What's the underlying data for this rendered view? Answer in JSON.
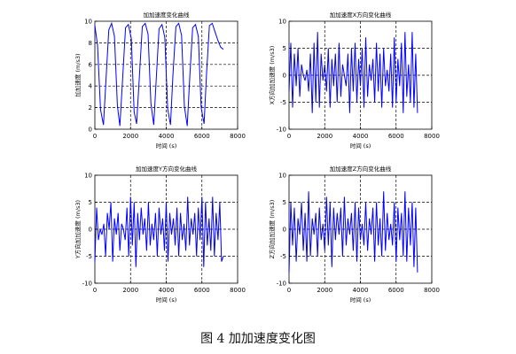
{
  "caption": "图 4 加加速度变化图",
  "chart_data": [
    {
      "type": "line",
      "title": "加加速度变化曲线",
      "xlabel": "时间 (s)",
      "ylabel": "加加速度 (m/s3)",
      "xlim": [
        0,
        8000
      ],
      "ylim": [
        0,
        10
      ],
      "xticks": [
        0,
        2000,
        4000,
        6000,
        8000
      ],
      "yticks": [
        0,
        2,
        4,
        6,
        8,
        10
      ],
      "grid": "dashed",
      "series": [
        {
          "color": "#0000ff",
          "x": [
            0,
            150,
            320,
            480,
            620,
            780,
            940,
            1100,
            1260,
            1400,
            1560,
            1720,
            1880,
            2040,
            2200,
            2340,
            2500,
            2660,
            2820,
            2980,
            3140,
            3300,
            3440,
            3600,
            3760,
            3920,
            4080,
            4240,
            4380,
            4540,
            4700,
            4860,
            5020,
            5180,
            5320,
            5480,
            5640,
            5800,
            5960,
            6120,
            6260,
            6420,
            6580,
            6740,
            6900,
            7050,
            7200
          ],
          "y": [
            9.6,
            7.8,
            1.8,
            0.4,
            4.5,
            9.2,
            9.8,
            8.6,
            2.2,
            0.3,
            4.8,
            9.4,
            9.7,
            8.4,
            1.6,
            0.5,
            5.0,
            9.5,
            9.8,
            8.8,
            2.4,
            0.4,
            4.6,
            9.3,
            9.7,
            8.5,
            1.9,
            0.4,
            5.1,
            9.5,
            9.8,
            8.7,
            2.1,
            0.3,
            4.9,
            9.4,
            9.7,
            8.6,
            2.0,
            0.5,
            5.2,
            9.6,
            9.8,
            9.0,
            8.2,
            7.6,
            7.4
          ]
        }
      ]
    },
    {
      "type": "line",
      "title": "加加速度X方向变化曲线",
      "xlabel": "时间 (s)",
      "ylabel": "X方向加加速度 (m/s3)",
      "xlim": [
        0,
        8000
      ],
      "ylim": [
        -10,
        10
      ],
      "xticks": [
        0,
        2000,
        4000,
        6000,
        8000
      ],
      "yticks": [
        -10,
        -5,
        0,
        5,
        10
      ],
      "grid": "dashed",
      "series": [
        {
          "color": "#0000ff",
          "x": [
            0,
            100,
            200,
            300,
            400,
            500,
            600,
            700,
            800,
            900,
            1000,
            1100,
            1200,
            1300,
            1400,
            1500,
            1600,
            1700,
            1800,
            1900,
            2000,
            2100,
            2200,
            2300,
            2400,
            2500,
            2600,
            2700,
            2800,
            2900,
            3000,
            3100,
            3200,
            3300,
            3400,
            3500,
            3600,
            3700,
            3800,
            3900,
            4000,
            4100,
            4200,
            4300,
            4400,
            4500,
            4600,
            4700,
            4800,
            4900,
            5000,
            5100,
            5200,
            5300,
            5400,
            5500,
            5600,
            5700,
            5800,
            5900,
            6000,
            6100,
            6200,
            6300,
            6400,
            6500,
            6600,
            6700,
            6800,
            6900,
            7000,
            7100,
            7200
          ],
          "y": [
            -3,
            6,
            -6,
            4,
            -2,
            5,
            -4,
            2,
            0,
            -1,
            1,
            -3,
            4,
            -7,
            6,
            -5,
            8,
            -6,
            4,
            -1,
            2,
            -3,
            5,
            -6,
            3,
            -2,
            4,
            -5,
            6,
            -4,
            2,
            0,
            -2,
            4,
            -7,
            5,
            -3,
            6,
            -5,
            3,
            -2,
            5,
            -6,
            7,
            -4,
            2,
            -1,
            3,
            -5,
            6,
            -3,
            4,
            -6,
            5,
            -2,
            1,
            -3,
            4,
            -6,
            7,
            -5,
            3,
            -2,
            6,
            -7,
            8,
            -4,
            2,
            -5,
            8,
            -6,
            4,
            -7
          ]
        }
      ]
    },
    {
      "type": "line",
      "title": "加加速度Y方向变化曲线",
      "xlabel": "时间 (s)",
      "ylabel": "Y方向加加速度 (m/s3)",
      "xlim": [
        0,
        8000
      ],
      "ylim": [
        -10,
        10
      ],
      "xticks": [
        0,
        2000,
        4000,
        6000,
        8000
      ],
      "yticks": [
        -10,
        -5,
        0,
        5,
        10
      ],
      "grid": "dashed",
      "series": [
        {
          "color": "#0000ff",
          "x": [
            0,
            100,
            200,
            300,
            400,
            500,
            600,
            700,
            800,
            900,
            1000,
            1100,
            1200,
            1300,
            1400,
            1500,
            1600,
            1700,
            1800,
            1900,
            2000,
            2100,
            2200,
            2300,
            2400,
            2500,
            2600,
            2700,
            2800,
            2900,
            3000,
            3100,
            3200,
            3300,
            3400,
            3500,
            3600,
            3700,
            3800,
            3900,
            4000,
            4100,
            4200,
            4300,
            4400,
            4500,
            4600,
            4700,
            4800,
            4900,
            5000,
            5100,
            5200,
            5300,
            5400,
            5500,
            5600,
            5700,
            5800,
            5900,
            6000,
            6100,
            6200,
            6300,
            6400,
            6500,
            6600,
            6700,
            6800,
            6900,
            7000,
            7100,
            7200
          ],
          "y": [
            -6,
            4,
            -2,
            0,
            -1,
            1,
            -5,
            3,
            0,
            5,
            -6,
            2,
            -1,
            3,
            -4,
            1,
            0,
            -2,
            4,
            -5,
            6,
            -3,
            5,
            -7,
            3,
            -2,
            4,
            -1,
            2,
            -4,
            5,
            -3,
            1,
            -2,
            3,
            -5,
            4,
            -1,
            2,
            -4,
            5,
            -6,
            3,
            -1,
            2,
            -3,
            4,
            -5,
            3,
            -2,
            1,
            -4,
            6,
            -3,
            2,
            -1,
            3,
            -5,
            4,
            -2,
            6,
            -7,
            5,
            -3,
            2,
            -4,
            6,
            -5,
            3,
            -2,
            5,
            -6,
            -5
          ]
        }
      ]
    },
    {
      "type": "line",
      "title": "加加速度Z方向变化曲线",
      "xlabel": "时间 (s)",
      "ylabel": "Z方向加加速度 (m/s3)",
      "xlim": [
        0,
        8000
      ],
      "ylim": [
        -10,
        10
      ],
      "xticks": [
        0,
        2000,
        4000,
        6000,
        8000
      ],
      "yticks": [
        -10,
        -5,
        0,
        5,
        10
      ],
      "grid": "dashed",
      "series": [
        {
          "color": "#0000ff",
          "x": [
            0,
            100,
            200,
            300,
            400,
            500,
            600,
            700,
            800,
            900,
            1000,
            1100,
            1200,
            1300,
            1400,
            1500,
            1600,
            1700,
            1800,
            1900,
            2000,
            2100,
            2200,
            2300,
            2400,
            2500,
            2600,
            2700,
            2800,
            2900,
            3000,
            3100,
            3200,
            3300,
            3400,
            3500,
            3600,
            3700,
            3800,
            3900,
            4000,
            4100,
            4200,
            4300,
            4400,
            4500,
            4600,
            4700,
            4800,
            4900,
            5000,
            5100,
            5200,
            5300,
            5400,
            5500,
            5600,
            5700,
            5800,
            5900,
            6000,
            6100,
            6200,
            6300,
            6400,
            6500,
            6600,
            6700,
            6800,
            6900,
            7000,
            7100,
            7200
          ],
          "y": [
            -8,
            5,
            -3,
            4,
            -6,
            2,
            -1,
            5,
            -4,
            3,
            -6,
            7,
            -5,
            2,
            -1,
            3,
            -5,
            4,
            -2,
            1,
            -4,
            6,
            -3,
            5,
            -7,
            4,
            -2,
            3,
            -1,
            4,
            -5,
            6,
            -3,
            2,
            -1,
            3,
            -4,
            5,
            -6,
            4,
            -2,
            1,
            -3,
            5,
            -4,
            2,
            -1,
            4,
            -6,
            5,
            -3,
            2,
            -5,
            7,
            -4,
            3,
            -2,
            1,
            -3,
            5,
            -6,
            4,
            -2,
            3,
            -5,
            7,
            -6,
            4,
            -3,
            5,
            -7,
            4,
            -8
          ]
        }
      ]
    }
  ]
}
